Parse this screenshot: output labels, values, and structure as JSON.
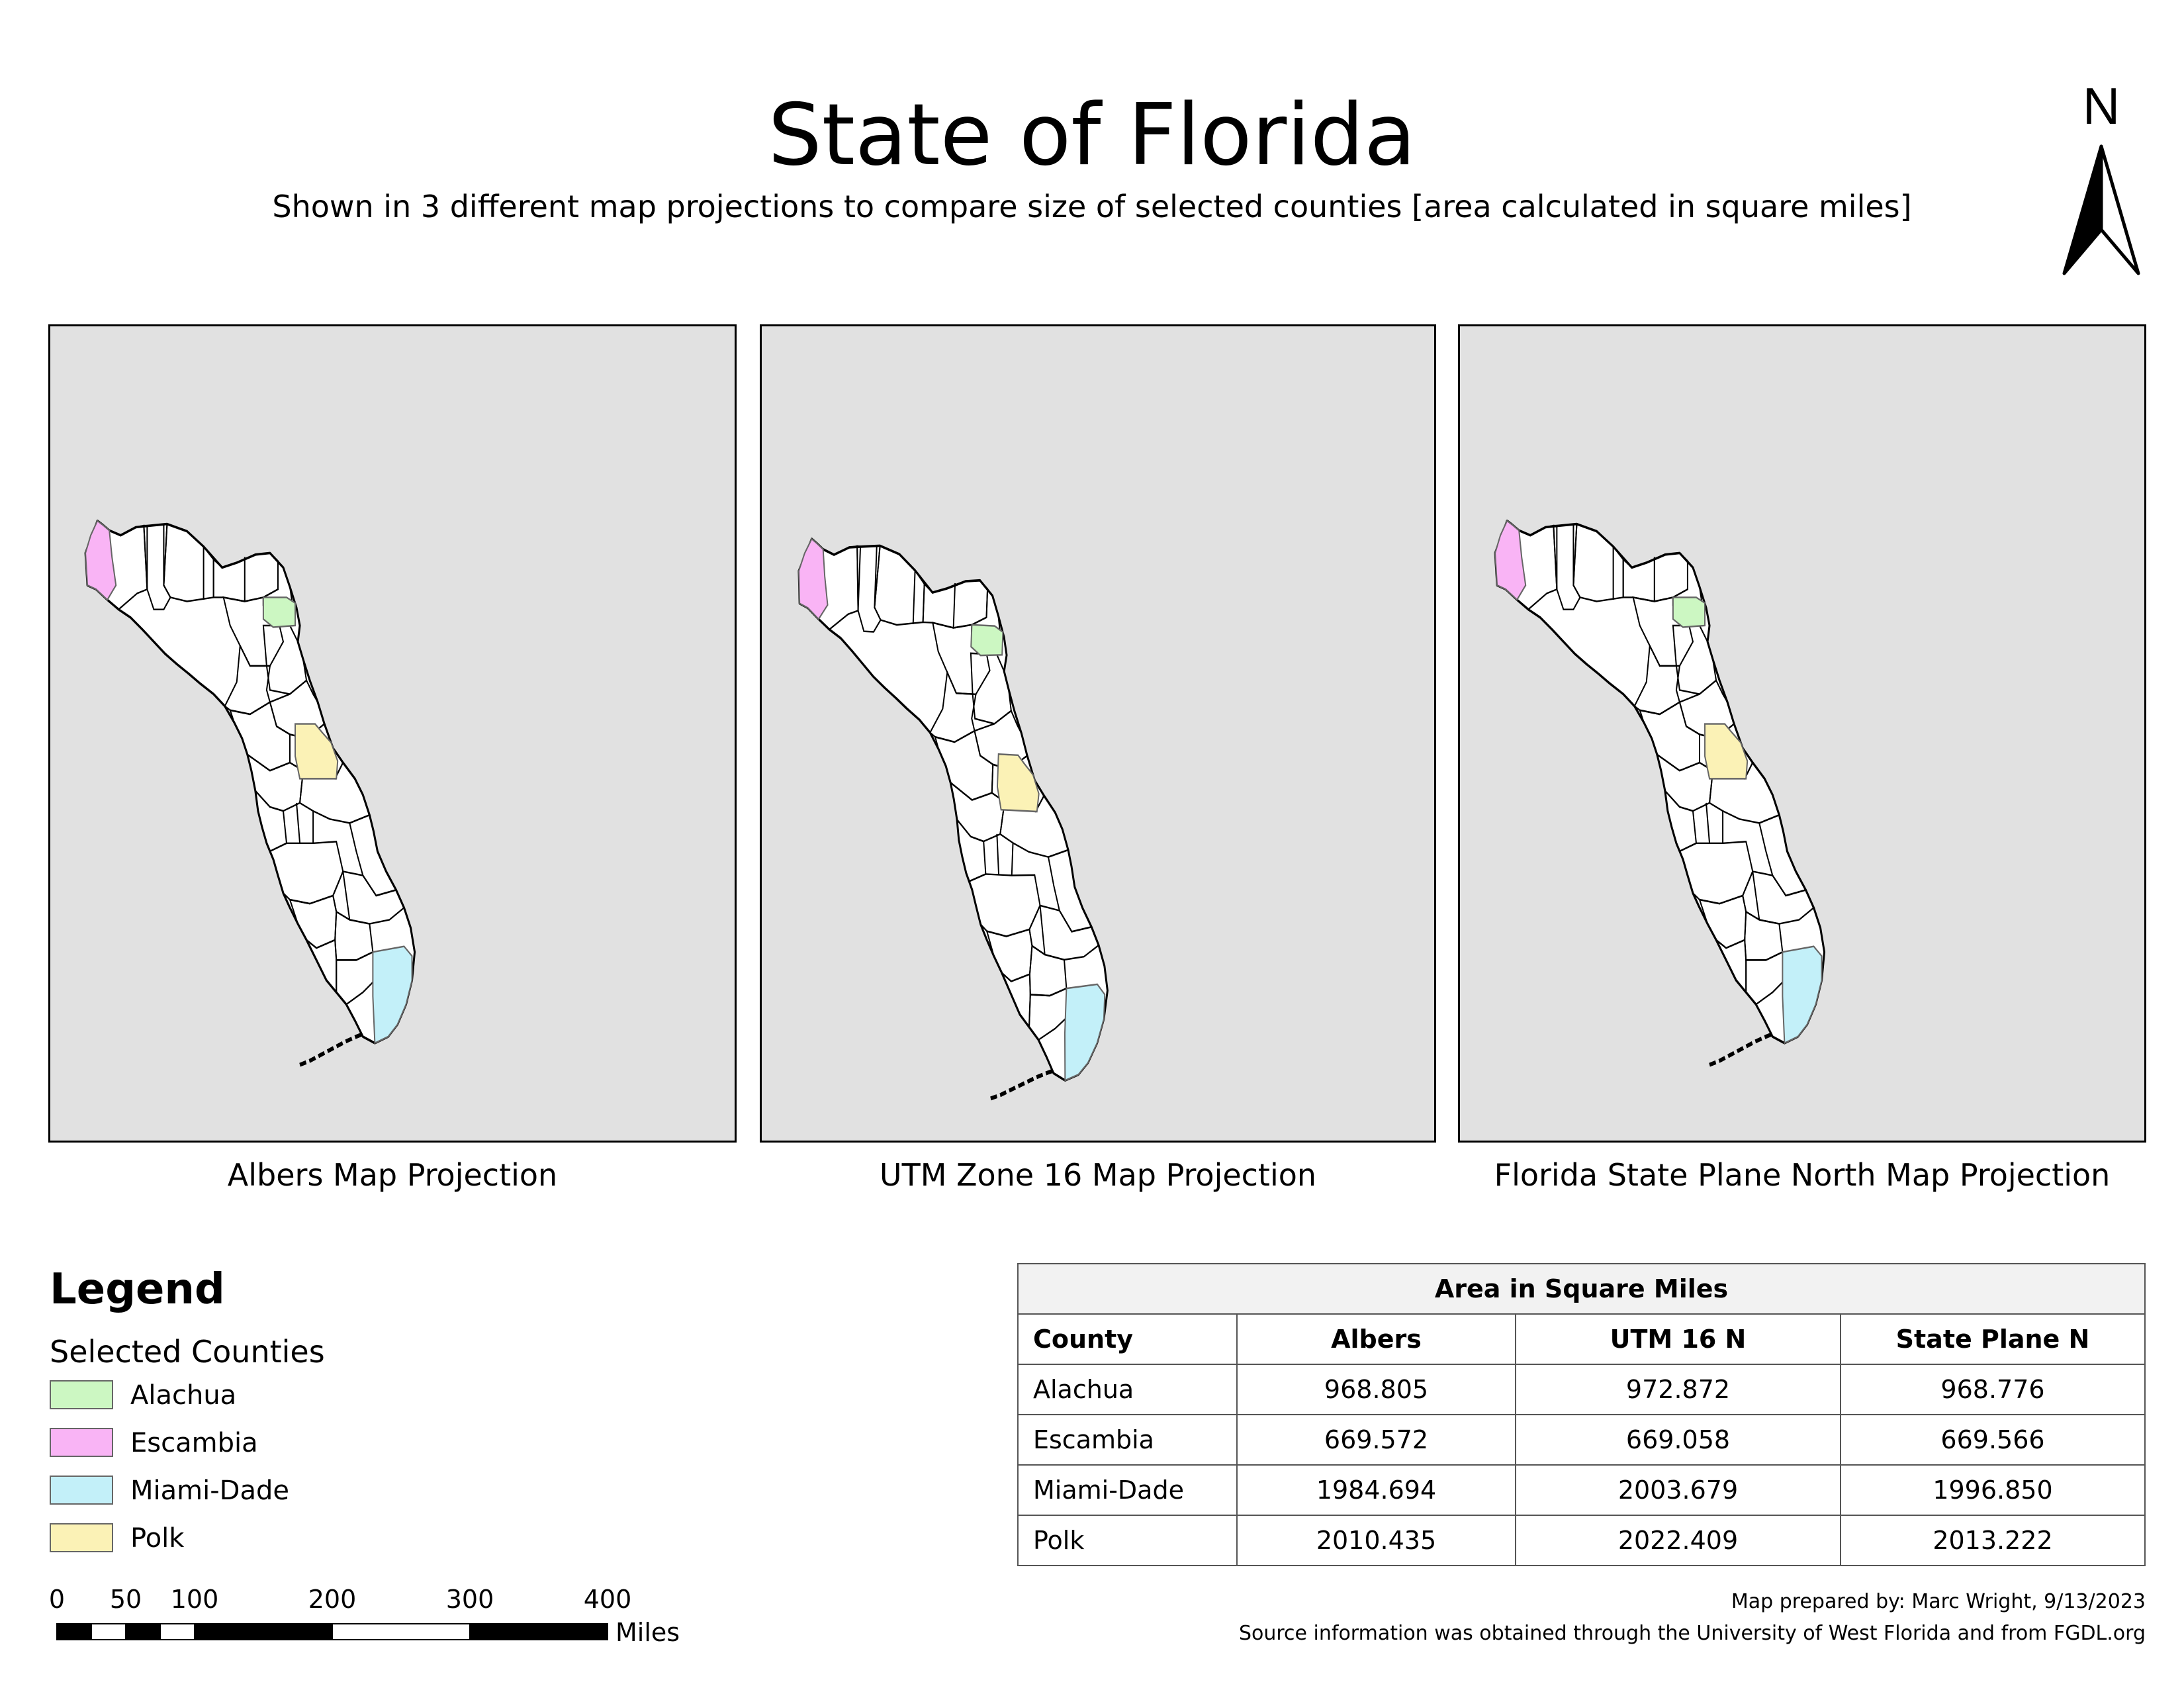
{
  "header": {
    "title": "State of Florida",
    "subtitle": "Shown in 3 different map projections to compare size of selected counties [area calculated in square miles]",
    "north_label": "N"
  },
  "colors": {
    "background": "#e1e1e1",
    "alachua": "#ccf7c2",
    "escambia": "#f9b4f5",
    "miami_dade": "#c3f0f9",
    "polk": "#fbf2b6",
    "land": "#ffffff",
    "boundary": "#000000"
  },
  "maps": [
    {
      "caption": "Albers Map Projection"
    },
    {
      "caption": "UTM Zone 16 Map Projection"
    },
    {
      "caption": "Florida State Plane North Map Projection"
    }
  ],
  "legend": {
    "title": "Legend",
    "subtitle": "Selected Counties",
    "items": [
      {
        "label": "Alachua",
        "color": "#ccf7c2"
      },
      {
        "label": "Escambia",
        "color": "#f9b4f5"
      },
      {
        "label": "Miami-Dade",
        "color": "#c3f0f9"
      },
      {
        "label": "Polk",
        "color": "#fbf2b6"
      }
    ]
  },
  "scale_bar": {
    "ticks": [
      "0",
      "50",
      "100",
      "200",
      "300",
      "400"
    ],
    "unit": "Miles"
  },
  "table": {
    "caption": "Area in Square Miles",
    "headers": [
      "County",
      "Albers",
      "UTM 16 N",
      "State Plane N"
    ],
    "rows": [
      [
        "Alachua",
        "968.805",
        "972.872",
        "968.776"
      ],
      [
        "Escambia",
        "669.572",
        "669.058",
        "669.566"
      ],
      [
        "Miami-Dade",
        "1984.694",
        "2003.679",
        "1996.850"
      ],
      [
        "Polk",
        "2010.435",
        "2022.409",
        "2013.222"
      ]
    ]
  },
  "footer": {
    "credit": "Map prepared by: Marc Wright, 9/13/2023",
    "source": "Source information was obtained through the University of West Florida and from FGDL.org"
  }
}
